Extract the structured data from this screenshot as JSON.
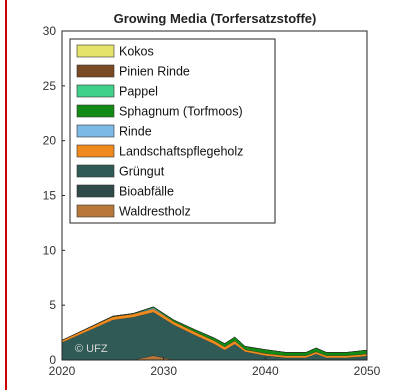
{
  "chart_data": {
    "type": "area",
    "stacked": true,
    "title": "Growing Media (Torfersatzstoffe)",
    "xlabel": "",
    "ylabel": "",
    "xlim": [
      2020,
      2050
    ],
    "ylim": [
      0,
      30
    ],
    "x_ticks": [
      2020,
      2030,
      2040,
      2050
    ],
    "y_ticks": [
      0,
      5,
      10,
      15,
      20,
      25,
      30
    ],
    "grid": false,
    "legend_position": "top-left",
    "x": [
      2020,
      2025,
      2027,
      2029,
      2031,
      2033,
      2035,
      2036,
      2037,
      2038,
      2040,
      2042,
      2044,
      2045,
      2046,
      2048,
      2050
    ],
    "series": [
      {
        "name": "Kokos",
        "color": "#e6e36a",
        "values": [
          0.0,
          0.0,
          0.0,
          0.0,
          0.0,
          0.0,
          0.0,
          0.0,
          0.0,
          0.0,
          0.0,
          0.0,
          0.0,
          0.0,
          0.0,
          0.0,
          0.0
        ]
      },
      {
        "name": "Pinien Rinde",
        "color": "#7a4a24",
        "values": [
          0.0,
          0.0,
          0.0,
          0.0,
          0.0,
          0.0,
          0.0,
          0.0,
          0.0,
          0.0,
          0.0,
          0.0,
          0.0,
          0.0,
          0.0,
          0.0,
          0.0
        ]
      },
      {
        "name": "Pappel",
        "color": "#3fd08a",
        "values": [
          0.0,
          0.0,
          0.0,
          0.0,
          0.0,
          0.0,
          0.0,
          0.0,
          0.0,
          0.0,
          0.0,
          0.0,
          0.0,
          0.0,
          0.0,
          0.0,
          0.0
        ]
      },
      {
        "name": "Sphagnum (Torfmoos)",
        "color": "#138a13",
        "values": [
          0.0,
          0.05,
          0.05,
          0.1,
          0.15,
          0.2,
          0.25,
          0.3,
          0.35,
          0.3,
          0.35,
          0.3,
          0.3,
          0.35,
          0.3,
          0.3,
          0.35
        ]
      },
      {
        "name": "Rinde",
        "color": "#7db9e6",
        "values": [
          0.0,
          0.0,
          0.0,
          0.1,
          0.0,
          0.0,
          0.0,
          0.0,
          0.0,
          0.0,
          0.0,
          0.0,
          0.0,
          0.0,
          0.0,
          0.0,
          0.0
        ]
      },
      {
        "name": "Landschaftspflegeholz",
        "color": "#f08a1d",
        "values": [
          0.2,
          0.3,
          0.3,
          0.3,
          0.3,
          0.3,
          0.3,
          0.3,
          0.3,
          0.2,
          0.2,
          0.2,
          0.2,
          0.2,
          0.2,
          0.2,
          0.2
        ]
      },
      {
        "name": "Grüngut",
        "color": "#2f5a56",
        "values": [
          1.6,
          3.65,
          3.9,
          3.95,
          3.2,
          2.3,
          1.45,
          0.9,
          1.45,
          0.75,
          0.4,
          0.2,
          0.2,
          0.55,
          0.2,
          0.2,
          0.35
        ]
      },
      {
        "name": "Bioabfälle",
        "color": "#2e4b4a",
        "values": [
          0.0,
          0.0,
          0.0,
          0.0,
          0.0,
          0.0,
          0.0,
          0.0,
          0.0,
          0.0,
          0.0,
          0.0,
          0.0,
          0.0,
          0.0,
          0.0,
          0.0
        ]
      },
      {
        "name": "Waldrestholz",
        "color": "#b8783a",
        "values": [
          0.0,
          0.0,
          0.0,
          0.4,
          0.0,
          0.0,
          0.0,
          0.0,
          0.0,
          0.0,
          0.0,
          0.0,
          0.0,
          0.0,
          0.0,
          0.0,
          0.0
        ]
      }
    ],
    "annotations": [
      "© UFZ"
    ]
  }
}
